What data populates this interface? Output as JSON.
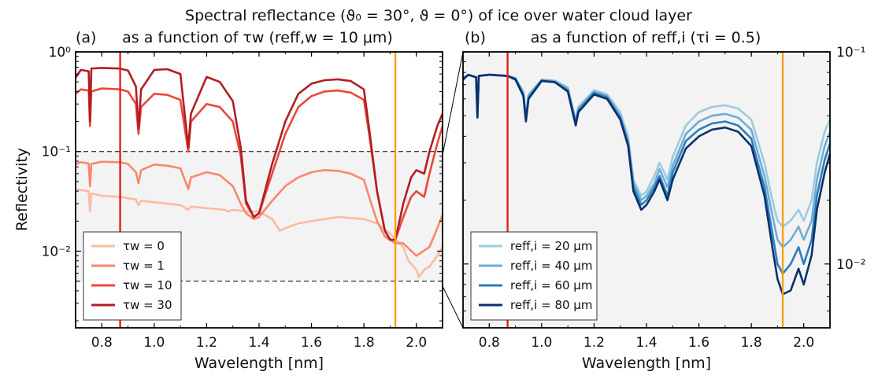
{
  "figure": {
    "title": "Spectral reflectance (ϑ₀ = 30°, ϑ = 0°) of ice over water cloud layer"
  },
  "chart_data": [
    {
      "type": "line",
      "panel_label": "(a)",
      "title": "as a function of τw (reff,w = 10 μm)",
      "xlabel": "Wavelength [nm]",
      "ylabel": "Reflectivity",
      "xlim": [
        0.7,
        2.1
      ],
      "ylim": [
        0.0017,
        1.0
      ],
      "yscale": "log",
      "xticks": [
        0.8,
        1.0,
        1.2,
        1.4,
        1.6,
        1.8,
        2.0
      ],
      "xtick_labels": [
        "0.8",
        "1.0",
        "1.2",
        "1.4",
        "1.6",
        "1.8",
        "2.0"
      ],
      "yticks": [
        1.0,
        0.1,
        0.01
      ],
      "ytick_labels": [
        "10⁰",
        "10⁻¹",
        "10⁻²"
      ],
      "legend_position": "lower-left",
      "vlines": [
        {
          "x": 0.87,
          "color": "#e3201c"
        },
        {
          "x": 1.92,
          "color": "#f5a01a"
        }
      ],
      "hlines": [
        0.1,
        0.005
      ],
      "shaded_band": [
        0.005,
        0.1
      ],
      "series": [
        {
          "name": "τw = 0",
          "color": "#fcbba1",
          "x": [
            0.7,
            0.72,
            0.75,
            0.755,
            0.76,
            0.8,
            0.87,
            0.93,
            0.94,
            0.95,
            1.0,
            1.1,
            1.13,
            1.14,
            1.2,
            1.27,
            1.28,
            1.3,
            1.35,
            1.4,
            1.45,
            1.48,
            1.5,
            1.55,
            1.6,
            1.7,
            1.8,
            1.85,
            1.9,
            1.95,
            1.97,
            2.0,
            2.01,
            2.03,
            2.05,
            2.08,
            2.1
          ],
          "y": [
            0.042,
            0.041,
            0.04,
            0.025,
            0.038,
            0.036,
            0.035,
            0.033,
            0.029,
            0.032,
            0.031,
            0.029,
            0.026,
            0.028,
            0.027,
            0.026,
            0.025,
            0.026,
            0.025,
            0.025,
            0.021,
            0.016,
            0.017,
            0.019,
            0.02,
            0.022,
            0.021,
            0.019,
            0.015,
            0.011,
            0.008,
            0.0065,
            0.0055,
            0.0065,
            0.007,
            0.009,
            0.011
          ]
        },
        {
          "name": "τw = 1",
          "color": "#f7886d",
          "x": [
            0.7,
            0.72,
            0.75,
            0.755,
            0.76,
            0.8,
            0.87,
            0.9,
            0.93,
            0.94,
            0.95,
            1.0,
            1.05,
            1.1,
            1.13,
            1.14,
            1.2,
            1.25,
            1.3,
            1.33,
            1.35,
            1.38,
            1.4,
            1.45,
            1.5,
            1.55,
            1.6,
            1.65,
            1.7,
            1.75,
            1.8,
            1.82,
            1.85,
            1.88,
            1.9,
            1.92,
            1.95,
            2.0,
            2.05,
            2.08,
            2.1
          ],
          "y": [
            0.075,
            0.078,
            0.076,
            0.045,
            0.075,
            0.079,
            0.078,
            0.075,
            0.062,
            0.048,
            0.065,
            0.074,
            0.072,
            0.068,
            0.042,
            0.055,
            0.062,
            0.058,
            0.045,
            0.03,
            0.024,
            0.021,
            0.022,
            0.032,
            0.045,
            0.055,
            0.062,
            0.065,
            0.064,
            0.06,
            0.052,
            0.035,
            0.02,
            0.014,
            0.013,
            0.012,
            0.012,
            0.009,
            0.011,
            0.017,
            0.023
          ]
        },
        {
          "name": "τw = 10",
          "color": "#e8483a",
          "x": [
            0.7,
            0.72,
            0.75,
            0.755,
            0.76,
            0.8,
            0.87,
            0.9,
            0.93,
            0.94,
            0.95,
            1.0,
            1.05,
            1.1,
            1.13,
            1.14,
            1.2,
            1.25,
            1.3,
            1.33,
            1.35,
            1.38,
            1.4,
            1.45,
            1.5,
            1.55,
            1.6,
            1.65,
            1.7,
            1.75,
            1.8,
            1.82,
            1.85,
            1.88,
            1.9,
            1.92,
            1.95,
            1.98,
            2.0,
            2.03,
            2.05,
            2.08,
            2.1
          ],
          "y": [
            0.38,
            0.42,
            0.41,
            0.18,
            0.4,
            0.43,
            0.42,
            0.4,
            0.3,
            0.15,
            0.28,
            0.38,
            0.37,
            0.33,
            0.1,
            0.2,
            0.3,
            0.28,
            0.2,
            0.09,
            0.03,
            0.022,
            0.024,
            0.06,
            0.15,
            0.28,
            0.36,
            0.4,
            0.41,
            0.39,
            0.33,
            0.15,
            0.04,
            0.016,
            0.013,
            0.013,
            0.022,
            0.035,
            0.04,
            0.035,
            0.06,
            0.12,
            0.18
          ]
        },
        {
          "name": "τw = 30",
          "color": "#b21e24",
          "x": [
            0.7,
            0.72,
            0.75,
            0.755,
            0.76,
            0.8,
            0.87,
            0.9,
            0.93,
            0.94,
            0.95,
            1.0,
            1.05,
            1.1,
            1.13,
            1.14,
            1.2,
            1.25,
            1.3,
            1.33,
            1.35,
            1.38,
            1.4,
            1.45,
            1.5,
            1.55,
            1.6,
            1.65,
            1.7,
            1.75,
            1.8,
            1.82,
            1.85,
            1.88,
            1.9,
            1.92,
            1.95,
            1.98,
            2.0,
            2.03,
            2.05,
            2.08,
            2.1
          ],
          "y": [
            0.55,
            0.66,
            0.64,
            0.2,
            0.68,
            0.69,
            0.68,
            0.65,
            0.45,
            0.17,
            0.42,
            0.66,
            0.67,
            0.6,
            0.11,
            0.24,
            0.56,
            0.5,
            0.32,
            0.11,
            0.032,
            0.022,
            0.024,
            0.075,
            0.2,
            0.38,
            0.48,
            0.52,
            0.53,
            0.51,
            0.42,
            0.17,
            0.04,
            0.016,
            0.013,
            0.013,
            0.03,
            0.055,
            0.065,
            0.06,
            0.1,
            0.18,
            0.24
          ]
        }
      ]
    },
    {
      "type": "line",
      "panel_label": "(b)",
      "title": "as a function of reff,i (τi = 0.5)",
      "xlabel": "Wavelength [nm]",
      "xlim": [
        0.7,
        2.1
      ],
      "ylim": [
        0.005,
        0.1
      ],
      "yscale": "log",
      "xticks": [
        0.8,
        1.0,
        1.2,
        1.4,
        1.6,
        1.8,
        2.0
      ],
      "xtick_labels": [
        "0.8",
        "1.0",
        "1.2",
        "1.4",
        "1.6",
        "1.8",
        "2.0"
      ],
      "yticks": [
        0.1,
        0.01
      ],
      "ytick_labels": [
        "10⁻¹",
        "10⁻²"
      ],
      "legend_position": "lower-left",
      "vlines": [
        {
          "x": 0.87,
          "color": "#e3201c"
        },
        {
          "x": 1.92,
          "color": "#f5a01a"
        }
      ],
      "series": [
        {
          "name": "reff,i = 20 μm",
          "color": "#9ecae1",
          "x": [
            0.7,
            0.72,
            0.75,
            0.755,
            0.76,
            0.8,
            0.87,
            0.9,
            0.93,
            0.94,
            0.95,
            1.0,
            1.05,
            1.1,
            1.13,
            1.14,
            1.2,
            1.25,
            1.3,
            1.33,
            1.35,
            1.38,
            1.4,
            1.43,
            1.45,
            1.48,
            1.5,
            1.55,
            1.6,
            1.65,
            1.7,
            1.75,
            1.8,
            1.85,
            1.88,
            1.9,
            1.92,
            1.95,
            1.98,
            2.0,
            2.03,
            2.05,
            2.08,
            2.1
          ],
          "y": [
            0.075,
            0.078,
            0.076,
            0.05,
            0.077,
            0.078,
            0.077,
            0.075,
            0.065,
            0.05,
            0.063,
            0.074,
            0.073,
            0.068,
            0.048,
            0.055,
            0.066,
            0.063,
            0.052,
            0.04,
            0.025,
            0.021,
            0.022,
            0.026,
            0.03,
            0.025,
            0.032,
            0.045,
            0.052,
            0.055,
            0.056,
            0.054,
            0.048,
            0.03,
            0.02,
            0.016,
            0.015,
            0.016,
            0.018,
            0.016,
            0.02,
            0.03,
            0.042,
            0.048
          ]
        },
        {
          "name": "reff,i = 40 μm",
          "color": "#6baed6",
          "x": [
            0.7,
            0.72,
            0.75,
            0.755,
            0.76,
            0.8,
            0.87,
            0.9,
            0.93,
            0.94,
            0.95,
            1.0,
            1.05,
            1.1,
            1.13,
            1.14,
            1.2,
            1.25,
            1.3,
            1.33,
            1.35,
            1.38,
            1.4,
            1.43,
            1.45,
            1.48,
            1.5,
            1.55,
            1.6,
            1.65,
            1.7,
            1.75,
            1.8,
            1.85,
            1.88,
            1.9,
            1.92,
            1.95,
            1.98,
            2.0,
            2.03,
            2.05,
            2.08,
            2.1
          ],
          "y": [
            0.075,
            0.078,
            0.076,
            0.05,
            0.077,
            0.078,
            0.077,
            0.075,
            0.064,
            0.049,
            0.062,
            0.074,
            0.073,
            0.067,
            0.047,
            0.054,
            0.065,
            0.062,
            0.05,
            0.038,
            0.024,
            0.02,
            0.021,
            0.024,
            0.028,
            0.023,
            0.029,
            0.041,
            0.047,
            0.05,
            0.051,
            0.049,
            0.043,
            0.026,
            0.017,
            0.013,
            0.012,
            0.013,
            0.015,
            0.013,
            0.016,
            0.025,
            0.036,
            0.042
          ]
        },
        {
          "name": "reff,i = 60 μm",
          "color": "#2f7cbb",
          "x": [
            0.7,
            0.72,
            0.75,
            0.755,
            0.76,
            0.8,
            0.87,
            0.9,
            0.93,
            0.94,
            0.95,
            1.0,
            1.05,
            1.1,
            1.13,
            1.14,
            1.2,
            1.25,
            1.3,
            1.33,
            1.35,
            1.38,
            1.4,
            1.43,
            1.45,
            1.48,
            1.5,
            1.55,
            1.6,
            1.65,
            1.7,
            1.75,
            1.8,
            1.85,
            1.88,
            1.9,
            1.92,
            1.95,
            1.98,
            2.0,
            2.03,
            2.05,
            2.08,
            2.1
          ],
          "y": [
            0.075,
            0.078,
            0.076,
            0.05,
            0.077,
            0.078,
            0.077,
            0.075,
            0.063,
            0.048,
            0.061,
            0.073,
            0.072,
            0.066,
            0.046,
            0.053,
            0.064,
            0.061,
            0.049,
            0.037,
            0.023,
            0.019,
            0.02,
            0.023,
            0.026,
            0.021,
            0.027,
            0.038,
            0.043,
            0.046,
            0.047,
            0.045,
            0.039,
            0.023,
            0.014,
            0.01,
            0.009,
            0.01,
            0.012,
            0.01,
            0.013,
            0.021,
            0.031,
            0.037
          ]
        },
        {
          "name": "reff,i = 80 μm",
          "color": "#08306b",
          "x": [
            0.7,
            0.72,
            0.75,
            0.755,
            0.76,
            0.8,
            0.87,
            0.9,
            0.93,
            0.94,
            0.95,
            1.0,
            1.05,
            1.1,
            1.13,
            1.14,
            1.2,
            1.25,
            1.3,
            1.33,
            1.35,
            1.38,
            1.4,
            1.43,
            1.45,
            1.48,
            1.5,
            1.55,
            1.6,
            1.65,
            1.7,
            1.75,
            1.8,
            1.85,
            1.88,
            1.9,
            1.92,
            1.95,
            1.98,
            2.0,
            2.03,
            2.05,
            2.08,
            2.1
          ],
          "y": [
            0.074,
            0.078,
            0.076,
            0.049,
            0.077,
            0.078,
            0.077,
            0.074,
            0.062,
            0.047,
            0.06,
            0.073,
            0.072,
            0.065,
            0.045,
            0.052,
            0.063,
            0.06,
            0.048,
            0.036,
            0.022,
            0.018,
            0.019,
            0.022,
            0.025,
            0.02,
            0.025,
            0.035,
            0.04,
            0.043,
            0.044,
            0.042,
            0.036,
            0.021,
            0.012,
            0.0085,
            0.0072,
            0.0075,
            0.0095,
            0.008,
            0.011,
            0.018,
            0.027,
            0.033
          ]
        }
      ]
    }
  ]
}
